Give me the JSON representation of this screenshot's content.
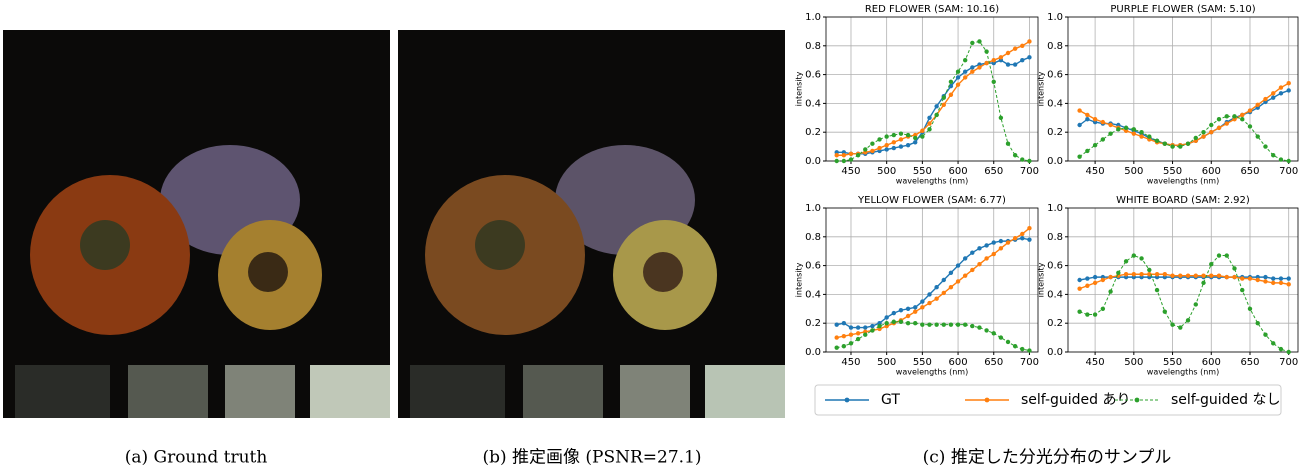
{
  "captions": [
    "(a) Ground truth",
    "(b) 推定画像 (PSNR=27.1)",
    "(c) 推定した分光分布のサンプル"
  ],
  "chart_data": [
    {
      "type": "line",
      "title": "RED FLOWER (SAM: 10.16)",
      "x_label": "wavelengths (nm)",
      "y_label": "intensity",
      "x": [
        430,
        440,
        450,
        460,
        470,
        480,
        490,
        500,
        510,
        520,
        530,
        540,
        550,
        560,
        570,
        580,
        590,
        600,
        610,
        620,
        630,
        640,
        650,
        660,
        670,
        680,
        690,
        700
      ],
      "xlim": [
        415,
        712
      ],
      "ylim": [
        0,
        1
      ],
      "xticks": [
        450,
        500,
        550,
        600,
        650,
        700
      ],
      "yticks": [
        {
          "value": 0,
          "label": "0.0"
        },
        0.2,
        0.4,
        0.6,
        0.8,
        {
          "value": 1,
          "label": "1.0"
        }
      ],
      "grid": true,
      "series": [
        {
          "name": "GT",
          "color": "#1f77b4",
          "linestyle": "solid",
          "values": [
            0.06,
            0.06,
            0.05,
            0.05,
            0.05,
            0.06,
            0.07,
            0.08,
            0.09,
            0.1,
            0.11,
            0.13,
            0.2,
            0.3,
            0.38,
            0.45,
            0.52,
            0.58,
            0.62,
            0.65,
            0.67,
            0.68,
            0.68,
            0.7,
            0.67,
            0.67,
            0.7,
            0.72
          ]
        },
        {
          "name": "self-guided あり",
          "color": "#ff7f0e",
          "linestyle": "solid",
          "values": [
            0.04,
            0.04,
            0.05,
            0.05,
            0.06,
            0.07,
            0.09,
            0.11,
            0.13,
            0.15,
            0.17,
            0.18,
            0.21,
            0.26,
            0.32,
            0.39,
            0.46,
            0.53,
            0.58,
            0.62,
            0.65,
            0.68,
            0.7,
            0.72,
            0.75,
            0.78,
            0.8,
            0.83
          ]
        },
        {
          "name": "self-guided なし",
          "color": "#2ca02c",
          "linestyle": "dashed",
          "values": [
            0.0,
            0.0,
            0.01,
            0.04,
            0.08,
            0.12,
            0.15,
            0.17,
            0.18,
            0.19,
            0.18,
            0.16,
            0.17,
            0.22,
            0.32,
            0.44,
            0.55,
            0.62,
            0.7,
            0.82,
            0.83,
            0.76,
            0.55,
            0.3,
            0.12,
            0.04,
            0.01,
            0.0
          ]
        }
      ]
    },
    {
      "type": "line",
      "title": "PURPLE FLOWER (SAM: 5.10)",
      "x_label": "wavelengths (nm)",
      "y_label": "intensity",
      "x": [
        430,
        440,
        450,
        460,
        470,
        480,
        490,
        500,
        510,
        520,
        530,
        540,
        550,
        560,
        570,
        580,
        590,
        600,
        610,
        620,
        630,
        640,
        650,
        660,
        670,
        680,
        690,
        700
      ],
      "xlim": [
        415,
        712
      ],
      "ylim": [
        0,
        1
      ],
      "xticks": [
        450,
        500,
        550,
        600,
        650,
        700
      ],
      "yticks": [
        {
          "value": 0,
          "label": "0.0"
        },
        0.2,
        0.4,
        0.6,
        0.8,
        {
          "value": 1,
          "label": "1.0"
        }
      ],
      "grid": true,
      "series": [
        {
          "color": "#1f77b4",
          "linestyle": "solid",
          "values": [
            0.25,
            0.29,
            0.27,
            0.26,
            0.26,
            0.25,
            0.23,
            0.21,
            0.19,
            0.16,
            0.14,
            0.12,
            0.11,
            0.11,
            0.12,
            0.14,
            0.17,
            0.2,
            0.23,
            0.27,
            0.3,
            0.32,
            0.34,
            0.37,
            0.41,
            0.44,
            0.47,
            0.49
          ]
        },
        {
          "color": "#ff7f0e",
          "linestyle": "solid",
          "values": [
            0.35,
            0.32,
            0.29,
            0.27,
            0.25,
            0.23,
            0.21,
            0.19,
            0.17,
            0.15,
            0.13,
            0.12,
            0.11,
            0.11,
            0.12,
            0.14,
            0.17,
            0.2,
            0.23,
            0.26,
            0.29,
            0.32,
            0.35,
            0.39,
            0.43,
            0.47,
            0.51,
            0.54
          ]
        },
        {
          "color": "#2ca02c",
          "linestyle": "dashed",
          "values": [
            0.03,
            0.07,
            0.11,
            0.15,
            0.19,
            0.22,
            0.23,
            0.22,
            0.2,
            0.17,
            0.14,
            0.12,
            0.1,
            0.1,
            0.12,
            0.16,
            0.2,
            0.25,
            0.29,
            0.31,
            0.31,
            0.29,
            0.24,
            0.17,
            0.1,
            0.04,
            0.01,
            0.0
          ]
        }
      ]
    },
    {
      "type": "line",
      "title": "YELLOW FLOWER (SAM: 6.77)",
      "x_label": "wavelengths (nm)",
      "y_label": "intensity",
      "x": [
        430,
        440,
        450,
        460,
        470,
        480,
        490,
        500,
        510,
        520,
        530,
        540,
        550,
        560,
        570,
        580,
        590,
        600,
        610,
        620,
        630,
        640,
        650,
        660,
        670,
        680,
        690,
        700
      ],
      "xlim": [
        415,
        712
      ],
      "ylim": [
        0,
        1
      ],
      "xticks": [
        450,
        500,
        550,
        600,
        650,
        700
      ],
      "yticks": [
        {
          "value": 0,
          "label": "0.0"
        },
        0.2,
        0.4,
        0.6,
        0.8,
        {
          "value": 1,
          "label": "1.0"
        }
      ],
      "grid": true,
      "series": [
        {
          "color": "#1f77b4",
          "linestyle": "solid",
          "values": [
            0.19,
            0.2,
            0.17,
            0.17,
            0.17,
            0.18,
            0.2,
            0.24,
            0.27,
            0.29,
            0.3,
            0.31,
            0.35,
            0.4,
            0.45,
            0.5,
            0.55,
            0.6,
            0.65,
            0.69,
            0.72,
            0.74,
            0.76,
            0.77,
            0.77,
            0.78,
            0.79,
            0.78
          ]
        },
        {
          "color": "#ff7f0e",
          "linestyle": "solid",
          "values": [
            0.1,
            0.11,
            0.12,
            0.13,
            0.14,
            0.15,
            0.16,
            0.18,
            0.2,
            0.22,
            0.25,
            0.28,
            0.31,
            0.34,
            0.37,
            0.41,
            0.45,
            0.49,
            0.53,
            0.57,
            0.61,
            0.65,
            0.68,
            0.72,
            0.76,
            0.79,
            0.82,
            0.86
          ]
        },
        {
          "color": "#2ca02c",
          "linestyle": "dashed",
          "values": [
            0.03,
            0.04,
            0.06,
            0.09,
            0.12,
            0.15,
            0.18,
            0.2,
            0.21,
            0.21,
            0.2,
            0.2,
            0.19,
            0.19,
            0.19,
            0.19,
            0.19,
            0.19,
            0.19,
            0.18,
            0.17,
            0.15,
            0.13,
            0.1,
            0.07,
            0.04,
            0.02,
            0.01
          ]
        }
      ]
    },
    {
      "type": "line",
      "title": "WHITE BOARD (SAM: 2.92)",
      "x_label": "wavelengths (nm)",
      "y_label": "intensity",
      "x": [
        430,
        440,
        450,
        460,
        470,
        480,
        490,
        500,
        510,
        520,
        530,
        540,
        550,
        560,
        570,
        580,
        590,
        600,
        610,
        620,
        630,
        640,
        650,
        660,
        670,
        680,
        690,
        700
      ],
      "xlim": [
        415,
        712
      ],
      "ylim": [
        0,
        1
      ],
      "xticks": [
        450,
        500,
        550,
        600,
        650,
        700
      ],
      "yticks": [
        {
          "value": 0,
          "label": "0.0"
        },
        0.2,
        0.4,
        0.6,
        0.8,
        {
          "value": 1,
          "label": "1.0"
        }
      ],
      "grid": true,
      "series": [
        {
          "color": "#1f77b4",
          "linestyle": "solid",
          "values": [
            0.5,
            0.51,
            0.52,
            0.52,
            0.52,
            0.52,
            0.52,
            0.52,
            0.52,
            0.52,
            0.52,
            0.52,
            0.52,
            0.52,
            0.52,
            0.52,
            0.52,
            0.52,
            0.52,
            0.52,
            0.52,
            0.52,
            0.52,
            0.52,
            0.52,
            0.51,
            0.51,
            0.51
          ]
        },
        {
          "color": "#ff7f0e",
          "linestyle": "solid",
          "values": [
            0.44,
            0.46,
            0.48,
            0.5,
            0.52,
            0.53,
            0.54,
            0.54,
            0.54,
            0.54,
            0.54,
            0.54,
            0.53,
            0.53,
            0.53,
            0.53,
            0.53,
            0.53,
            0.53,
            0.52,
            0.52,
            0.51,
            0.51,
            0.5,
            0.49,
            0.48,
            0.48,
            0.47
          ]
        },
        {
          "color": "#2ca02c",
          "linestyle": "dashed",
          "values": [
            0.28,
            0.26,
            0.26,
            0.3,
            0.42,
            0.55,
            0.63,
            0.67,
            0.65,
            0.57,
            0.43,
            0.28,
            0.19,
            0.17,
            0.22,
            0.33,
            0.48,
            0.61,
            0.67,
            0.67,
            0.58,
            0.43,
            0.3,
            0.2,
            0.12,
            0.06,
            0.02,
            0.0
          ]
        }
      ]
    }
  ]
}
